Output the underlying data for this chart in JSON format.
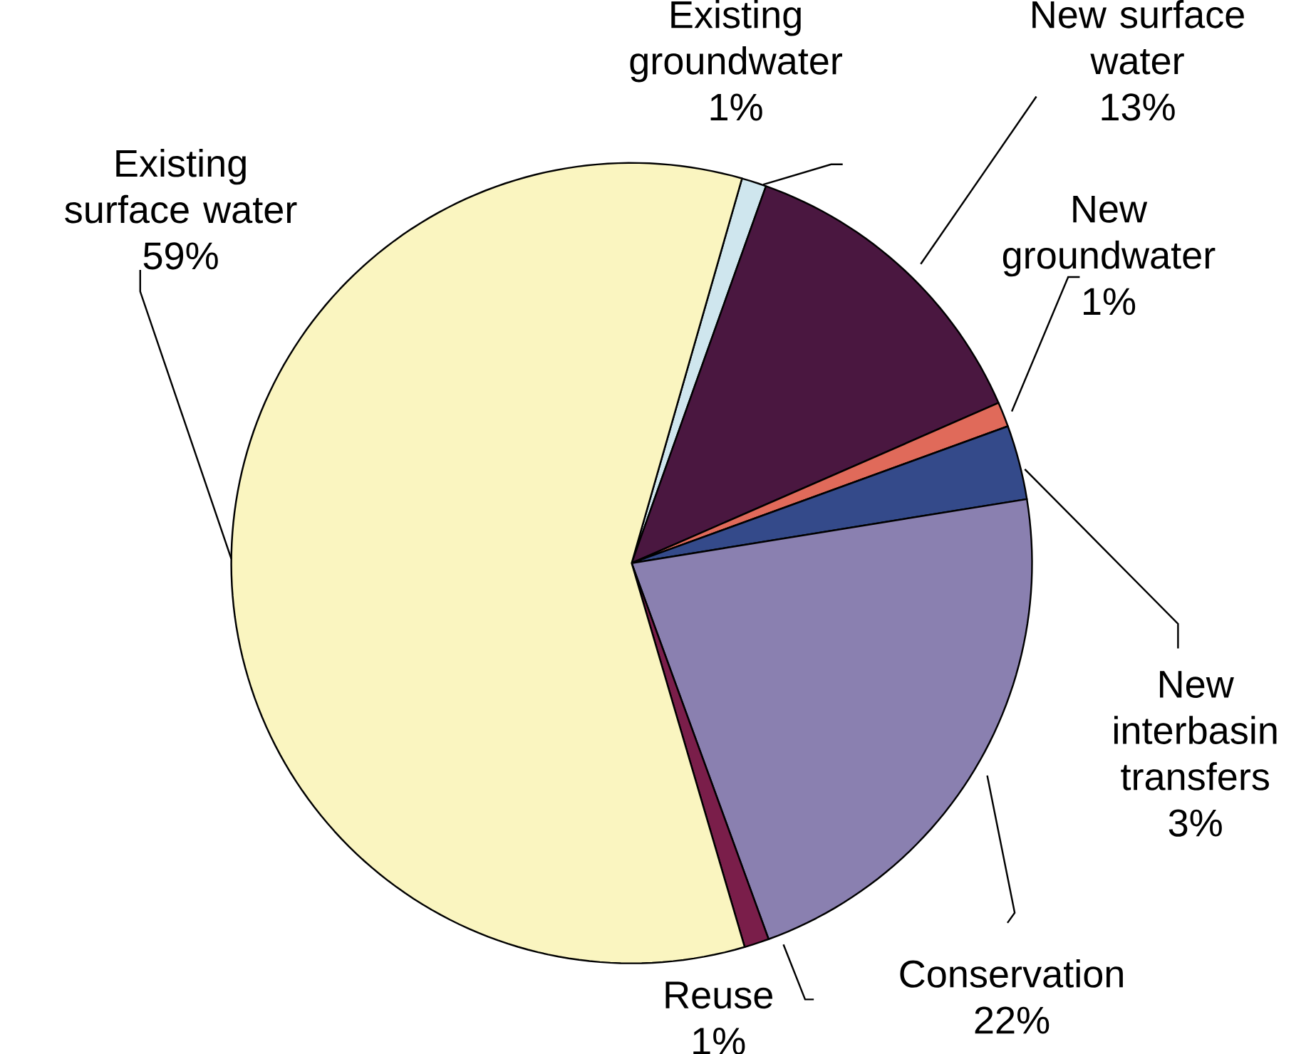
{
  "chart_data": {
    "type": "pie",
    "categories": [
      "Existing groundwater",
      "New surface water",
      "New groundwater",
      "New interbasin transfers",
      "Conservation",
      "Reuse",
      "Existing surface water"
    ],
    "values": [
      1,
      13,
      1,
      3,
      22,
      1,
      59
    ],
    "value_labels": [
      "1%",
      "13%",
      "1%",
      "3%",
      "22%",
      "1%",
      "59%"
    ],
    "colors": [
      "#cfe6ee",
      "#4a1740",
      "#e06a5a",
      "#344a8a",
      "#8a80b0",
      "#7a1e4a",
      "#faf5c0"
    ]
  }
}
